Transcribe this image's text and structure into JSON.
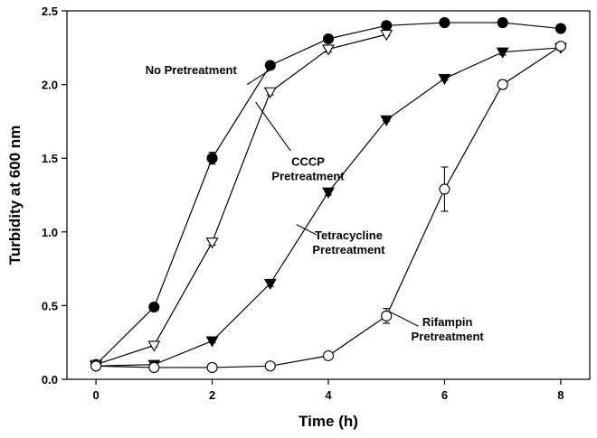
{
  "chart_data": {
    "type": "line",
    "xlabel": "Time (h)",
    "ylabel": "Turbidity at 600 nm",
    "xlim": [
      -0.5,
      8.5
    ],
    "ylim": [
      0,
      2.5
    ],
    "xticks": [
      0,
      2,
      4,
      6,
      8
    ],
    "yticks": [
      "0.0",
      "0.5",
      "1.0",
      "1.5",
      "2.0",
      "2.5"
    ],
    "ytick_values": [
      0,
      0.5,
      1.0,
      1.5,
      2.0,
      2.5
    ],
    "grid": false,
    "legend": "none",
    "series": [
      {
        "name": "No Pretreatment",
        "marker": "filled-circle",
        "x": [
          0,
          1,
          2,
          3,
          4,
          5,
          6,
          7,
          8
        ],
        "y": [
          0.1,
          0.49,
          1.5,
          2.13,
          2.31,
          2.4,
          2.42,
          2.42,
          2.38
        ],
        "err": [
          0.01,
          0.02,
          0.04,
          0.02,
          0.02,
          0.01,
          0.01,
          0.01,
          0.01
        ]
      },
      {
        "name": "CCCP Pretreatment",
        "marker": "open-triangle-down",
        "x": [
          0,
          1,
          2,
          3,
          4,
          5
        ],
        "y": [
          0.1,
          0.23,
          0.93,
          1.95,
          2.24,
          2.34
        ],
        "err": [
          0.01,
          0.01,
          0.02,
          0.02,
          0.02,
          0.01
        ]
      },
      {
        "name": "Tetracycline Pretreatment",
        "marker": "filled-triangle-down",
        "x": [
          0,
          1,
          2,
          3,
          4,
          5,
          6,
          7,
          8
        ],
        "y": [
          0.09,
          0.1,
          0.26,
          0.65,
          1.27,
          1.76,
          2.04,
          2.22,
          2.25
        ],
        "err": [
          0.01,
          0.01,
          0.01,
          0.02,
          0.02,
          0.01,
          0.01,
          0.02,
          0.01
        ]
      },
      {
        "name": "Rifampin Pretreatment",
        "marker": "open-circle",
        "x": [
          0,
          1,
          2,
          3,
          4,
          5,
          6,
          7,
          8
        ],
        "y": [
          0.09,
          0.08,
          0.08,
          0.09,
          0.16,
          0.43,
          1.29,
          2.0,
          2.26
        ],
        "err": [
          0.01,
          0.01,
          0.01,
          0.01,
          0.02,
          0.05,
          0.15,
          0.03,
          0.01
        ]
      }
    ],
    "annotations": [
      {
        "lines": [
          "No Pretreatment"
        ],
        "series": 0,
        "text_at": [
          0.85,
          2.07
        ],
        "text_anchor": "start",
        "arrow_from": [
          2.6,
          2.0
        ],
        "arrow_to": [
          3.0,
          2.1
        ]
      },
      {
        "lines": [
          "CCCP",
          "Pretreatment"
        ],
        "series": 1,
        "text_at": [
          3.65,
          1.45
        ],
        "text_anchor": "middle",
        "arrow_from": [
          3.35,
          1.55
        ],
        "arrow_to": [
          2.75,
          1.88
        ]
      },
      {
        "lines": [
          "Tetracycline",
          "Pretreatment"
        ],
        "series": 2,
        "text_at": [
          4.35,
          0.95
        ],
        "text_anchor": "middle",
        "arrow_from": [
          3.8,
          0.98
        ],
        "arrow_to": [
          3.45,
          1.05
        ]
      },
      {
        "lines": [
          "Rifampin",
          "Pretreatment"
        ],
        "series": 3,
        "text_at": [
          6.05,
          0.36
        ],
        "text_anchor": "middle",
        "arrow_from": [
          5.55,
          0.36
        ],
        "arrow_to": [
          5.05,
          0.46
        ]
      }
    ]
  }
}
